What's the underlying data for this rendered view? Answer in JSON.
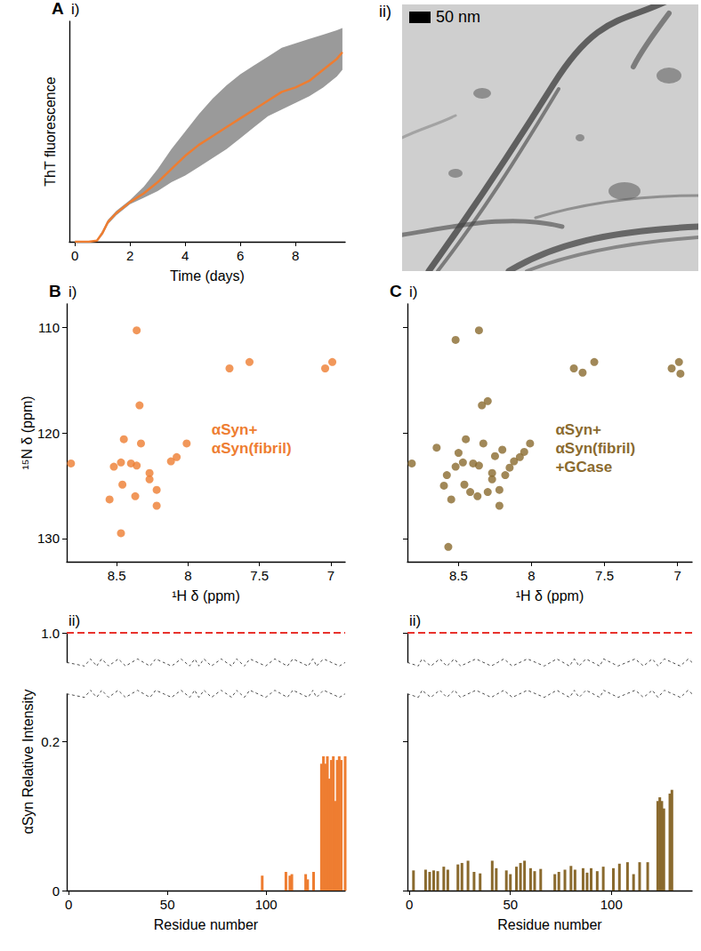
{
  "chart_data": [
    {
      "type": "line",
      "panel": "A",
      "subpanel": "i)",
      "xlabel": "Time (days)",
      "ylabel": "ThT fluorescence",
      "x": [
        0,
        0.5,
        0.8,
        1,
        1.2,
        1.5,
        2,
        2.5,
        3,
        3.5,
        4,
        4.5,
        5,
        5.5,
        6,
        6.5,
        7,
        7.5,
        8,
        8.5,
        9,
        9.5,
        9.7
      ],
      "series": [
        {
          "color": "#ee7d31",
          "values": [
            0,
            0,
            0.005,
            0.04,
            0.09,
            0.13,
            0.18,
            0.22,
            0.27,
            0.33,
            0.39,
            0.44,
            0.48,
            0.52,
            0.56,
            0.6,
            0.64,
            0.68,
            0.7,
            0.73,
            0.78,
            0.83,
            0.86
          ]
        }
      ],
      "band": {
        "color": "#9a9a9a",
        "lower": [
          0,
          0,
          0.003,
          0.03,
          0.08,
          0.12,
          0.17,
          0.2,
          0.23,
          0.27,
          0.3,
          0.34,
          0.38,
          0.42,
          0.47,
          0.52,
          0.57,
          0.6,
          0.63,
          0.66,
          0.7,
          0.75,
          0.78
        ],
        "upper": [
          0,
          0,
          0.008,
          0.05,
          0.1,
          0.14,
          0.19,
          0.25,
          0.33,
          0.42,
          0.5,
          0.58,
          0.65,
          0.71,
          0.76,
          0.8,
          0.84,
          0.88,
          0.9,
          0.92,
          0.94,
          0.96,
          0.97
        ]
      },
      "xlim": [
        -0.2,
        9.8
      ],
      "xticks": [
        0,
        2,
        4,
        6,
        8
      ],
      "ylim": [
        0,
        1
      ],
      "tick_labels": "x",
      "grid": false
    },
    {
      "type": "scatter",
      "panel": "B",
      "subpanel": "i)",
      "xlabel": "¹H δ (ppm)",
      "ylabel": "¹⁵N δ (ppm)",
      "color": "#ee7d31",
      "annotation": [
        "αSyn+",
        "αSyn(fibril)"
      ],
      "x": [
        8.36,
        7.71,
        7.57,
        7.04,
        6.99,
        8.34,
        8.45,
        8.33,
        8.01,
        8.08,
        8.12,
        8.47,
        8.4,
        8.36,
        8.52,
        8.82,
        8.27,
        8.27,
        8.46,
        8.22,
        8.37,
        8.22,
        8.55,
        8.47
      ],
      "values": [
        110.3,
        113.9,
        113.3,
        113.9,
        113.3,
        117.4,
        120.6,
        121.0,
        121.0,
        122.3,
        122.7,
        122.8,
        122.9,
        123.1,
        123.2,
        122.9,
        123.8,
        124.4,
        124.9,
        125.4,
        126.0,
        126.9,
        126.3,
        129.5
      ],
      "xlim": [
        8.85,
        6.9
      ],
      "xticks": [
        8.5,
        8,
        7.5,
        7
      ],
      "ylim": [
        132.2,
        107.8
      ],
      "yticks": [
        110,
        120,
        130
      ],
      "grid": false
    },
    {
      "type": "scatter",
      "panel": "C",
      "subpanel": "i)",
      "xlabel": "¹H δ (ppm)",
      "color": "#8a6a2e",
      "annotation": [
        "αSyn+",
        "αSyn(fibril)",
        "+GCase"
      ],
      "x": [
        8.36,
        8.52,
        7.71,
        7.65,
        7.57,
        7.04,
        6.99,
        6.98,
        8.34,
        8.3,
        8.45,
        8.33,
        8.01,
        8.08,
        8.12,
        8.47,
        8.4,
        8.36,
        8.52,
        8.82,
        8.27,
        8.27,
        8.46,
        8.22,
        8.37,
        8.22,
        8.55,
        8.58,
        8.18,
        8.15,
        8.42,
        8.3,
        8.25,
        8.6,
        8.05,
        8.5,
        8.2,
        8.65,
        8.57
      ],
      "values": [
        110.3,
        111.2,
        113.9,
        114.3,
        113.3,
        113.9,
        113.3,
        114.4,
        117.4,
        117.0,
        120.6,
        121.0,
        121.0,
        122.3,
        122.7,
        122.8,
        122.9,
        123.1,
        123.2,
        122.9,
        123.8,
        124.4,
        124.9,
        125.4,
        126.0,
        126.9,
        126.3,
        124.0,
        124.0,
        123.3,
        125.6,
        125.6,
        122.2,
        125.0,
        121.8,
        121.9,
        121.6,
        121.4,
        130.8
      ],
      "xlim": [
        8.85,
        6.9
      ],
      "xticks": [
        8.5,
        8,
        7.5,
        7
      ],
      "ylim": [
        132.2,
        107.8
      ],
      "yticks": [
        110,
        120,
        130
      ],
      "tick_labels": "x",
      "grid": false
    },
    {
      "type": "bar",
      "subpanel": "ii)",
      "xlabel": "Residue number",
      "ylabel": "αSyn Relative Intensity",
      "color": "#ee7d31",
      "x": [
        98,
        110,
        112,
        113,
        120,
        121,
        124,
        128,
        129,
        130,
        131,
        132,
        133,
        134,
        135,
        136,
        137,
        138,
        140
      ],
      "values": [
        0.02,
        0.025,
        0.02,
        0.022,
        0.022,
        0.015,
        0.025,
        0.17,
        0.18,
        0.17,
        0.18,
        0.15,
        0.175,
        0.18,
        0.12,
        0.175,
        0.18,
        0.175,
        0.18
      ],
      "hline": 1,
      "xlim": [
        -1,
        140
      ],
      "xticks": [
        0,
        50,
        100
      ],
      "ylim": [
        0,
        1
      ],
      "yticks": [
        0,
        0.2,
        {
          "value": 1,
          "label": "1.0"
        }
      ],
      "grid": false
    },
    {
      "type": "bar",
      "subpanel": "ii)",
      "xlabel": "Residue number",
      "color": "#8a6a2e",
      "x": [
        2,
        8,
        10,
        12,
        14,
        17,
        19,
        24,
        26,
        29,
        32,
        35,
        41,
        43,
        48,
        50,
        53,
        55,
        57,
        60,
        62,
        65,
        72,
        74,
        77,
        80,
        82,
        86,
        88,
        90,
        93,
        96,
        101,
        104,
        108,
        111,
        114,
        118,
        123,
        124,
        125,
        126,
        129,
        130
      ],
      "values": [
        0.027,
        0.028,
        0.025,
        0.027,
        0.026,
        0.032,
        0.028,
        0.035,
        0.037,
        0.04,
        0.025,
        0.023,
        0.04,
        0.03,
        0.027,
        0.022,
        0.032,
        0.037,
        0.04,
        0.03,
        0.026,
        0.029,
        0.022,
        0.025,
        0.028,
        0.033,
        0.028,
        0.03,
        0.024,
        0.03,
        0.026,
        0.032,
        0.03,
        0.036,
        0.038,
        0.022,
        0.038,
        0.038,
        0.12,
        0.125,
        0.12,
        0.11,
        0.13,
        0.135
      ],
      "hline": 1,
      "xlim": [
        -1,
        140
      ],
      "xticks": [
        0,
        50,
        100
      ],
      "ylim": [
        0,
        1
      ],
      "yticks": [
        0,
        0.2,
        {
          "value": 1,
          "label": "1.0"
        }
      ],
      "tick_labels": "x",
      "grid": false
    }
  ],
  "image": {
    "subpanel": "ii)",
    "scale_bar": "50 nm"
  }
}
